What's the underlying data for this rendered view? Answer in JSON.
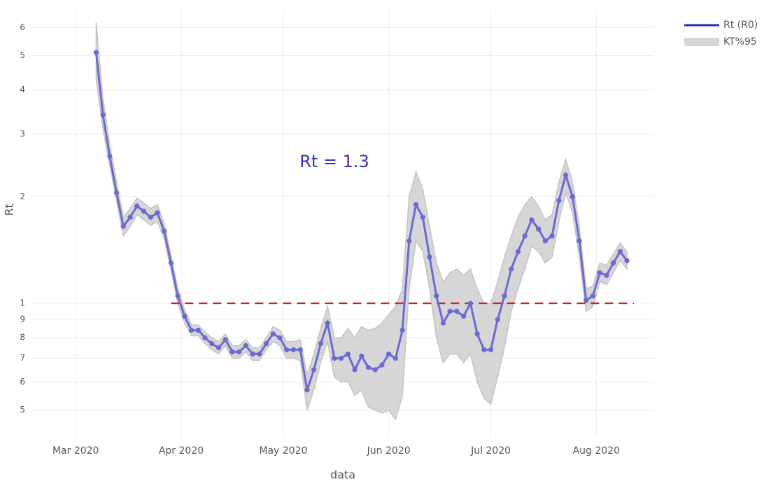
{
  "chart_data": {
    "type": "line",
    "log_y": true,
    "grid": true,
    "legend_position": "top-right",
    "x_label": "data",
    "y_label": "Rt",
    "annotation": "Rt =  1.3",
    "xlim": [
      "2020-02-17",
      "2020-08-18"
    ],
    "xticks": [
      {
        "value": "2020-03-01",
        "label": "Mar 2020"
      },
      {
        "value": "2020-04-01",
        "label": "Apr 2020"
      },
      {
        "value": "2020-05-01",
        "label": "May 2020"
      },
      {
        "value": "2020-06-01",
        "label": "Jun 2020"
      },
      {
        "value": "2020-07-01",
        "label": "Jul 2020"
      },
      {
        "value": "2020-08-01",
        "label": "Aug 2020"
      }
    ],
    "ylim": [
      0.42,
      6.7
    ],
    "yticks": [
      {
        "value": 0.5,
        "label": "5"
      },
      {
        "value": 0.6,
        "label": "6"
      },
      {
        "value": 0.7,
        "label": "7"
      },
      {
        "value": 0.8,
        "label": "8"
      },
      {
        "value": 0.9,
        "label": "9"
      },
      1,
      2,
      3,
      4,
      5,
      6
    ],
    "hline": {
      "value": 1,
      "color": "#cc2222",
      "start": "2020-03-29",
      "end": "2020-08-12"
    },
    "x": [
      "2020-03-07",
      "2020-03-09",
      "2020-03-11",
      "2020-03-13",
      "2020-03-15",
      "2020-03-17",
      "2020-03-19",
      "2020-03-21",
      "2020-03-23",
      "2020-03-25",
      "2020-03-27",
      "2020-03-29",
      "2020-03-31",
      "2020-04-02",
      "2020-04-04",
      "2020-04-06",
      "2020-04-08",
      "2020-04-10",
      "2020-04-12",
      "2020-04-14",
      "2020-04-16",
      "2020-04-18",
      "2020-04-20",
      "2020-04-22",
      "2020-04-24",
      "2020-04-26",
      "2020-04-28",
      "2020-04-30",
      "2020-05-02",
      "2020-05-04",
      "2020-05-06",
      "2020-05-08",
      "2020-05-10",
      "2020-05-12",
      "2020-05-14",
      "2020-05-16",
      "2020-05-18",
      "2020-05-20",
      "2020-05-22",
      "2020-05-24",
      "2020-05-26",
      "2020-05-28",
      "2020-05-30",
      "2020-06-01",
      "2020-06-03",
      "2020-06-05",
      "2020-06-07",
      "2020-06-09",
      "2020-06-11",
      "2020-06-13",
      "2020-06-15",
      "2020-06-17",
      "2020-06-19",
      "2020-06-21",
      "2020-06-23",
      "2020-06-25",
      "2020-06-27",
      "2020-06-29",
      "2020-07-01",
      "2020-07-03",
      "2020-07-05",
      "2020-07-07",
      "2020-07-09",
      "2020-07-11",
      "2020-07-13",
      "2020-07-15",
      "2020-07-17",
      "2020-07-19",
      "2020-07-21",
      "2020-07-23",
      "2020-07-25",
      "2020-07-27",
      "2020-07-29",
      "2020-07-31",
      "2020-08-02",
      "2020-08-04",
      "2020-08-06",
      "2020-08-08",
      "2020-08-10"
    ],
    "series": [
      {
        "name": "Rt (R0)",
        "color": "#6a6ad6",
        "legend_color": "#2a2abf",
        "values": [
          5.1,
          3.4,
          2.6,
          2.05,
          1.65,
          1.75,
          1.88,
          1.82,
          1.75,
          1.8,
          1.6,
          1.3,
          1.05,
          0.92,
          0.84,
          0.84,
          0.8,
          0.77,
          0.75,
          0.79,
          0.73,
          0.73,
          0.76,
          0.72,
          0.72,
          0.77,
          0.82,
          0.8,
          0.74,
          0.74,
          0.74,
          0.57,
          0.65,
          0.77,
          0.88,
          0.7,
          0.7,
          0.72,
          0.65,
          0.71,
          0.66,
          0.65,
          0.67,
          0.72,
          0.7,
          0.84,
          1.5,
          1.9,
          1.75,
          1.35,
          1.05,
          0.88,
          0.95,
          0.95,
          0.92,
          1.0,
          0.82,
          0.74,
          0.74,
          0.9,
          1.05,
          1.25,
          1.4,
          1.55,
          1.72,
          1.62,
          1.5,
          1.55,
          1.95,
          2.3,
          2.0,
          1.5,
          1.02,
          1.05,
          1.22,
          1.2,
          1.3,
          1.4,
          1.32
        ]
      }
    ],
    "band": {
      "name": "KT%95",
      "color": "#d6d6d6",
      "lower": [
        4.3,
        3.1,
        2.45,
        1.95,
        1.55,
        1.65,
        1.78,
        1.72,
        1.66,
        1.7,
        1.52,
        1.24,
        1.0,
        0.88,
        0.81,
        0.81,
        0.77,
        0.74,
        0.72,
        0.76,
        0.7,
        0.7,
        0.73,
        0.69,
        0.69,
        0.74,
        0.78,
        0.76,
        0.7,
        0.7,
        0.69,
        0.5,
        0.57,
        0.68,
        0.78,
        0.62,
        0.6,
        0.6,
        0.55,
        0.57,
        0.51,
        0.5,
        0.49,
        0.5,
        0.47,
        0.55,
        1.1,
        1.5,
        1.4,
        1.1,
        0.8,
        0.68,
        0.72,
        0.72,
        0.68,
        0.72,
        0.6,
        0.54,
        0.52,
        0.62,
        0.75,
        0.95,
        1.1,
        1.25,
        1.45,
        1.4,
        1.3,
        1.35,
        1.7,
        2.05,
        1.8,
        1.35,
        0.95,
        0.98,
        1.15,
        1.13,
        1.22,
        1.32,
        1.25
      ],
      "upper": [
        6.2,
        3.8,
        2.8,
        2.2,
        1.75,
        1.85,
        1.98,
        1.92,
        1.85,
        1.9,
        1.68,
        1.36,
        1.1,
        0.96,
        0.87,
        0.87,
        0.83,
        0.8,
        0.78,
        0.82,
        0.76,
        0.76,
        0.79,
        0.75,
        0.75,
        0.8,
        0.86,
        0.84,
        0.78,
        0.78,
        0.79,
        0.63,
        0.72,
        0.85,
        0.98,
        0.8,
        0.8,
        0.85,
        0.8,
        0.86,
        0.84,
        0.85,
        0.88,
        0.93,
        0.98,
        1.1,
        2.0,
        2.35,
        2.1,
        1.65,
        1.3,
        1.15,
        1.22,
        1.25,
        1.2,
        1.25,
        1.1,
        1.0,
        1.0,
        1.15,
        1.35,
        1.55,
        1.75,
        1.9,
        2.0,
        1.88,
        1.72,
        1.78,
        2.2,
        2.55,
        2.2,
        1.65,
        1.1,
        1.12,
        1.3,
        1.28,
        1.38,
        1.48,
        1.4
      ]
    }
  }
}
